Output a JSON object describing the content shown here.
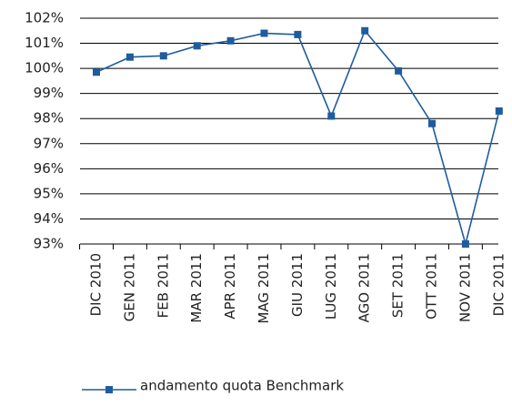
{
  "chart_data": {
    "type": "line",
    "categories": [
      "DIC 2010",
      "GEN 2011",
      "FEB 2011",
      "MAR 2011",
      "APR 2011",
      "MAG 2011",
      "GIU 2011",
      "LUG 2011",
      "AGO 2011",
      "SET 2011",
      "OTT 2011",
      "NOV 2011",
      "DIC 2011"
    ],
    "series": [
      {
        "name": "andamento quota Benchmark",
        "color": "#1f5c9e",
        "values": [
          99.85,
          100.45,
          100.5,
          100.9,
          101.1,
          101.4,
          101.35,
          98.1,
          101.5,
          99.9,
          97.8,
          93.0,
          98.3
        ]
      }
    ],
    "ylim": [
      93,
      102
    ],
    "yticks": [
      {
        "value": 93,
        "label": "93%"
      },
      {
        "value": 94,
        "label": "94%"
      },
      {
        "value": 95,
        "label": "95%"
      },
      {
        "value": 96,
        "label": "96%"
      },
      {
        "value": 97,
        "label": "97%"
      },
      {
        "value": 98,
        "label": "98%"
      },
      {
        "value": 99,
        "label": "99%"
      },
      {
        "value": 100,
        "label": "100%"
      },
      {
        "value": 101,
        "label": "101%"
      },
      {
        "value": 102,
        "label": "102%"
      }
    ],
    "grid": true,
    "legend": "bottom"
  }
}
